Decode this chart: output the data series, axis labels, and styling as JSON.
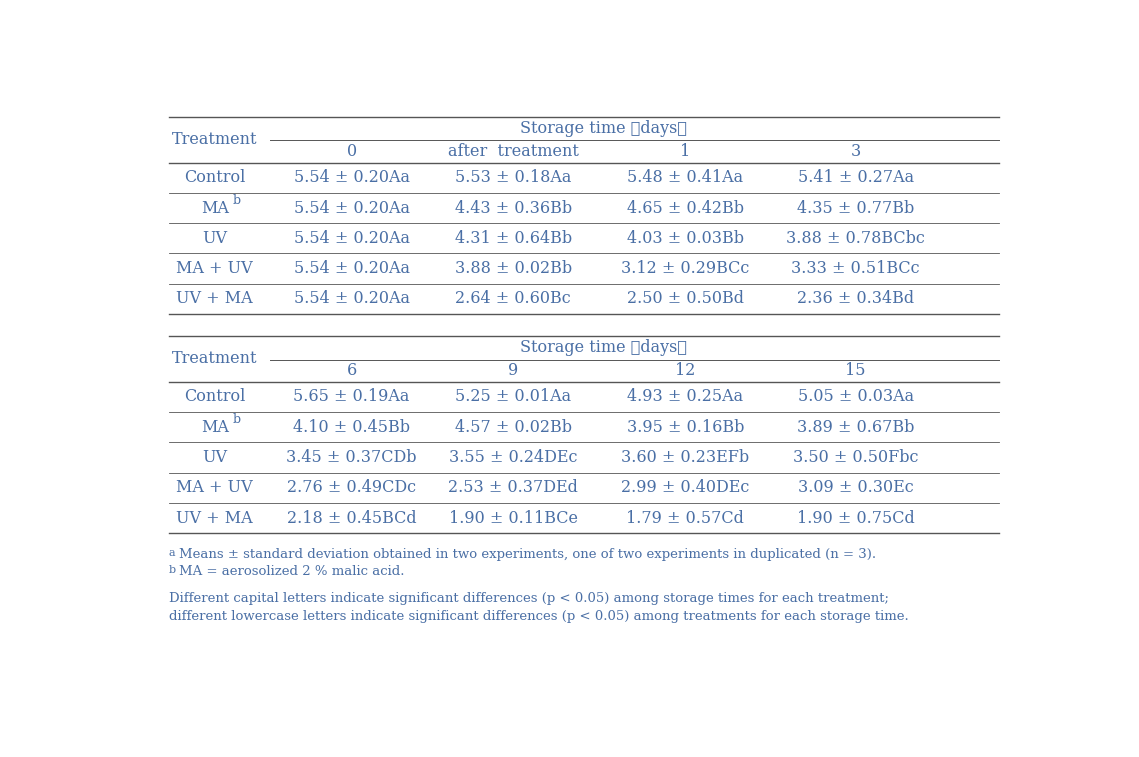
{
  "table1_header_top": "Storage time （days）",
  "table1_col_headers": [
    "0",
    "after  treatment",
    "1",
    "3"
  ],
  "table1_row_headers": [
    "Control",
    "MAb",
    "UV",
    "MA + UV",
    "UV + MA"
  ],
  "table1_data": [
    [
      "5.54 ± 0.20Aa",
      "5.53 ± 0.18Aa",
      "5.48 ± 0.41Aa",
      "5.41 ± 0.27Aa"
    ],
    [
      "5.54 ± 0.20Aa",
      "4.43 ± 0.36Bb",
      "4.65 ± 0.42Bb",
      "4.35 ± 0.77Bb"
    ],
    [
      "5.54 ± 0.20Aa",
      "4.31 ± 0.64Bb",
      "4.03 ± 0.03Bb",
      "3.88 ± 0.78BCbc"
    ],
    [
      "5.54 ± 0.20Aa",
      "3.88 ± 0.02Bb",
      "3.12 ± 0.29BCc",
      "3.33 ± 0.51BCc"
    ],
    [
      "5.54 ± 0.20Aa",
      "2.64 ± 0.60Bc",
      "2.50 ± 0.50Bd",
      "2.36 ± 0.34Bd"
    ]
  ],
  "table2_header_top": "Storage time （days）",
  "table2_col_headers": [
    "6",
    "9",
    "12",
    "15"
  ],
  "table2_row_headers": [
    "Control",
    "MAb",
    "UV",
    "MA + UV",
    "UV + MA"
  ],
  "table2_data": [
    [
      "5.65 ± 0.19Aa",
      "5.25 ± 0.01Aa",
      "4.93 ± 0.25Aa",
      "5.05 ± 0.03Aa"
    ],
    [
      "4.10 ± 0.45Bb",
      "4.57 ± 0.02Bb",
      "3.95 ± 0.16Bb",
      "3.89 ± 0.67Bb"
    ],
    [
      "3.45 ± 0.37CDb",
      "3.55 ± 0.24DEc",
      "3.60 ± 0.23EFb",
      "3.50 ± 0.50Fbc"
    ],
    [
      "2.76 ± 0.49CDc",
      "2.53 ± 0.37DEd",
      "2.99 ± 0.40DEc",
      "3.09 ± 0.30Ec"
    ],
    [
      "2.18 ± 0.45BCd",
      "1.90 ± 0.11BCe",
      "1.79 ± 0.57Cd",
      "1.90 ± 0.75Cd"
    ]
  ],
  "text_color": "#4a6fa5",
  "line_color": "#555555",
  "bg_color": "#ffffff",
  "font_size": 11.5,
  "fn_font_size": 9.5
}
